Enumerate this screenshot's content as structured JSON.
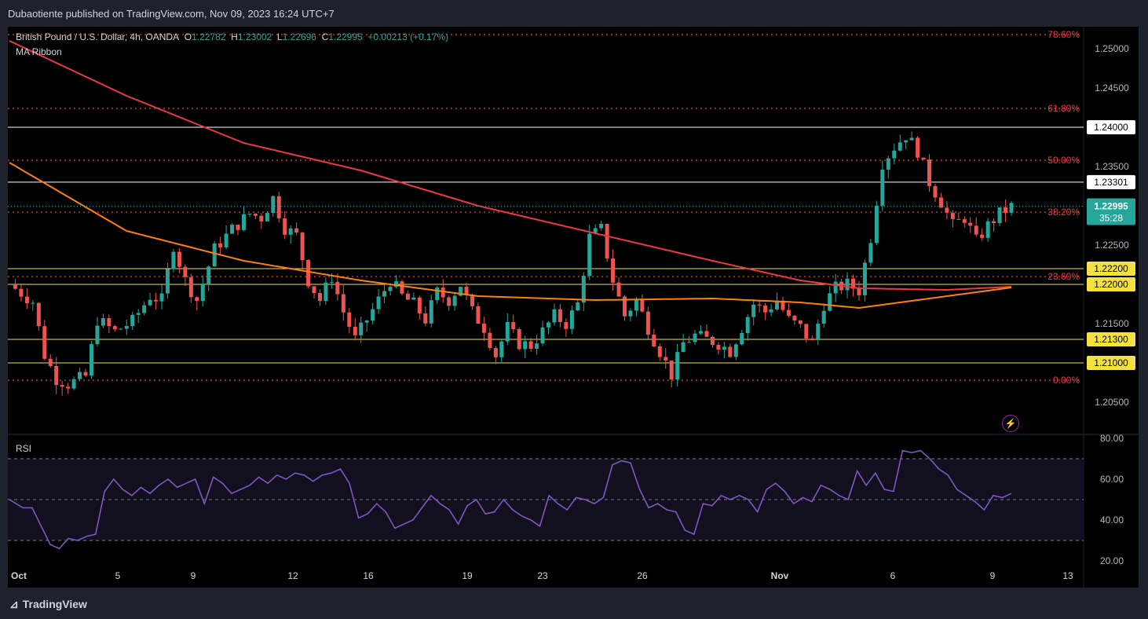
{
  "header": {
    "published": "Dubaotiente published on TradingView.com, Nov 09, 2023 16:24 UTC+7"
  },
  "legend": {
    "symbol": "British Pound / U.S. Dollar, 4h, OANDA",
    "o_label": "O",
    "o": "1.22782",
    "h_label": "H",
    "h": "1.23002",
    "l_label": "L",
    "l": "1.22696",
    "c_label": "C",
    "c": "1.22995",
    "change": "+0.00213 (+0.17%)",
    "indicator": "MA Ribbon"
  },
  "rsi_label": "RSI",
  "footer": {
    "brand": "TradingView"
  },
  "countdown": "35:28",
  "colors": {
    "up": "#26a69a",
    "down": "#ef5350",
    "ma_slow": "#f23645",
    "ma_fast": "#ff7f0e",
    "rsi": "#7e57c2",
    "fib": "#f23645",
    "level_white": "#ffffff",
    "level_yellow": "#f5e142"
  },
  "chart_data": {
    "type": "candlestick",
    "symbol": "GBPUSD",
    "timeframe": "4h",
    "y_ticks": [
      "1.25000",
      "1.24500",
      "1.23500",
      "1.22500",
      "1.21500",
      "1.20500"
    ],
    "ylim": [
      1.2025,
      1.2535
    ],
    "x_ticks": [
      "Oct",
      "5",
      "9",
      "12",
      "16",
      "19",
      "23",
      "26",
      "Nov",
      "6",
      "9",
      "13"
    ],
    "fib_levels": [
      {
        "label": "78.60%",
        "value": 1.2518
      },
      {
        "label": "61.80%",
        "value": 1.2424
      },
      {
        "label": "50.00%",
        "value": 1.2358
      },
      {
        "label": "38.20%",
        "value": 1.2292
      },
      {
        "label": "23.60%",
        "value": 1.221
      },
      {
        "label": "0.00%",
        "value": 1.2078
      }
    ],
    "horizontal_levels": [
      {
        "label": "1.24000",
        "value": 1.24,
        "style": "white"
      },
      {
        "label": "1.23301",
        "value": 1.23301,
        "style": "white"
      },
      {
        "label": "1.22200",
        "value": 1.222,
        "style": "yellow"
      },
      {
        "label": "1.22000",
        "value": 1.22,
        "style": "yellow"
      },
      {
        "label": "1.21300",
        "value": 1.213,
        "style": "yellow"
      },
      {
        "label": "1.21000",
        "value": 1.21,
        "style": "yellow"
      }
    ],
    "last_price": {
      "label": "1.22995",
      "value": 1.22995
    },
    "close_path": [
      [
        0,
        1.22
      ],
      [
        4,
        1.2178
      ],
      [
        6,
        1.211
      ],
      [
        8,
        1.208
      ],
      [
        10,
        1.2073
      ],
      [
        13,
        1.2083
      ],
      [
        15,
        1.2155
      ],
      [
        18,
        1.214
      ],
      [
        21,
        1.2153
      ],
      [
        24,
        1.2185
      ],
      [
        26,
        1.218
      ],
      [
        28,
        1.225
      ],
      [
        30,
        1.2205
      ],
      [
        32,
        1.218
      ],
      [
        35,
        1.2245
      ],
      [
        38,
        1.227
      ],
      [
        41,
        1.229
      ],
      [
        43,
        1.2285
      ],
      [
        45,
        1.231
      ],
      [
        47,
        1.2272
      ],
      [
        49,
        1.2262
      ],
      [
        51,
        1.2205
      ],
      [
        53,
        1.218
      ],
      [
        55,
        1.221
      ],
      [
        57,
        1.2165
      ],
      [
        59,
        1.213
      ],
      [
        61,
        1.2155
      ],
      [
        63,
        1.218
      ],
      [
        65,
        1.2205
      ],
      [
        67,
        1.2185
      ],
      [
        69,
        1.2175
      ],
      [
        71,
        1.2155
      ],
      [
        73,
        1.219
      ],
      [
        75,
        1.218
      ],
      [
        77,
        1.22
      ],
      [
        79,
        1.2165
      ],
      [
        81,
        1.2145
      ],
      [
        83,
        1.211
      ],
      [
        85,
        1.2145
      ],
      [
        87,
        1.2125
      ],
      [
        89,
        1.2122
      ],
      [
        91,
        1.214
      ],
      [
        93,
        1.216
      ],
      [
        95,
        1.215
      ],
      [
        97,
        1.2175
      ],
      [
        99,
        1.226
      ],
      [
        101,
        1.227
      ],
      [
        103,
        1.2205
      ],
      [
        105,
        1.216
      ],
      [
        107,
        1.218
      ],
      [
        109,
        1.2145
      ],
      [
        111,
        1.2115
      ],
      [
        113,
        1.2085
      ],
      [
        115,
        1.2125
      ],
      [
        117,
        1.2135
      ],
      [
        119,
        1.213
      ],
      [
        121,
        1.2125
      ],
      [
        123,
        1.2115
      ],
      [
        125,
        1.2145
      ],
      [
        127,
        1.2175
      ],
      [
        129,
        1.2165
      ],
      [
        131,
        1.218
      ],
      [
        133,
        1.2155
      ],
      [
        135,
        1.2145
      ],
      [
        137,
        1.2125
      ],
      [
        139,
        1.2175
      ],
      [
        141,
        1.2195
      ],
      [
        143,
        1.22
      ],
      [
        145,
        1.2192
      ],
      [
        147,
        1.226
      ],
      [
        149,
        1.2355
      ],
      [
        151,
        1.2375
      ],
      [
        153,
        1.239
      ],
      [
        155,
        1.237
      ],
      [
        157,
        1.233
      ],
      [
        159,
        1.2305
      ],
      [
        161,
        1.2275
      ],
      [
        163,
        1.2285
      ],
      [
        165,
        1.2255
      ],
      [
        167,
        1.2275
      ],
      [
        169,
        1.229
      ],
      [
        171,
        1.2299
      ]
    ],
    "ma_slow": [
      [
        0,
        1.251
      ],
      [
        20,
        1.244
      ],
      [
        40,
        1.238
      ],
      [
        60,
        1.2345
      ],
      [
        80,
        1.23
      ],
      [
        100,
        1.2265
      ],
      [
        120,
        1.223
      ],
      [
        135,
        1.2205
      ],
      [
        145,
        1.2195
      ],
      [
        160,
        1.2193
      ],
      [
        171,
        1.2197
      ]
    ],
    "ma_fast": [
      [
        0,
        1.2355
      ],
      [
        20,
        1.2268
      ],
      [
        40,
        1.223
      ],
      [
        60,
        1.2205
      ],
      [
        80,
        1.2185
      ],
      [
        100,
        1.218
      ],
      [
        120,
        1.2182
      ],
      [
        135,
        1.2177
      ],
      [
        145,
        1.217
      ],
      [
        155,
        1.218
      ],
      [
        165,
        1.219
      ],
      [
        171,
        1.2196
      ]
    ],
    "rsi": {
      "levels": [
        80,
        70,
        60,
        50,
        40,
        30,
        20
      ],
      "labels": [
        "80.00",
        "60.00",
        "40.00",
        "20.00"
      ],
      "ylim": [
        20,
        80
      ],
      "values": [
        [
          0,
          50
        ],
        [
          3,
          46
        ],
        [
          5,
          46
        ],
        [
          7,
          37
        ],
        [
          9,
          28
        ],
        [
          11,
          26
        ],
        [
          13,
          31
        ],
        [
          15,
          30
        ],
        [
          17,
          32
        ],
        [
          19,
          33
        ],
        [
          21,
          54
        ],
        [
          23,
          60
        ],
        [
          25,
          55
        ],
        [
          27,
          52
        ],
        [
          29,
          56
        ],
        [
          31,
          53
        ],
        [
          33,
          57
        ],
        [
          35,
          60
        ],
        [
          37,
          56
        ],
        [
          39,
          58
        ],
        [
          41,
          60
        ],
        [
          43,
          48
        ],
        [
          45,
          61
        ],
        [
          47,
          58
        ],
        [
          49,
          53
        ],
        [
          51,
          55
        ],
        [
          53,
          57
        ],
        [
          55,
          61
        ],
        [
          57,
          58
        ],
        [
          59,
          62
        ],
        [
          61,
          60
        ],
        [
          63,
          63
        ],
        [
          65,
          62
        ],
        [
          67,
          59
        ],
        [
          69,
          62
        ],
        [
          71,
          63
        ],
        [
          73,
          65
        ],
        [
          75,
          58
        ],
        [
          77,
          41
        ],
        [
          79,
          43
        ],
        [
          81,
          48
        ],
        [
          83,
          44
        ],
        [
          85,
          36
        ],
        [
          87,
          38
        ],
        [
          89,
          40
        ],
        [
          91,
          46
        ],
        [
          93,
          52
        ],
        [
          95,
          48
        ],
        [
          97,
          45
        ],
        [
          99,
          38
        ],
        [
          101,
          47
        ],
        [
          103,
          50
        ],
        [
          105,
          43
        ],
        [
          107,
          44
        ],
        [
          109,
          50
        ],
        [
          111,
          45
        ],
        [
          113,
          42
        ],
        [
          115,
          40
        ],
        [
          117,
          37
        ],
        [
          119,
          52
        ],
        [
          121,
          48
        ],
        [
          123,
          45
        ],
        [
          125,
          51
        ],
        [
          127,
          50
        ],
        [
          129,
          48
        ],
        [
          131,
          51
        ],
        [
          133,
          67
        ],
        [
          135,
          69
        ],
        [
          137,
          68
        ],
        [
          139,
          55
        ],
        [
          141,
          46
        ],
        [
          143,
          48
        ],
        [
          145,
          45
        ],
        [
          147,
          44
        ],
        [
          149,
          35
        ],
        [
          151,
          33
        ],
        [
          153,
          48
        ],
        [
          155,
          47
        ],
        [
          157,
          52
        ],
        [
          159,
          50
        ],
        [
          161,
          52
        ],
        [
          163,
          50
        ],
        [
          165,
          44
        ],
        [
          167,
          55
        ],
        [
          169,
          58
        ],
        [
          171,
          54
        ],
        [
          173,
          48
        ],
        [
          175,
          51
        ],
        [
          177,
          49
        ],
        [
          179,
          57
        ],
        [
          181,
          55
        ],
        [
          183,
          52
        ],
        [
          185,
          50
        ],
        [
          187,
          64
        ],
        [
          189,
          57
        ],
        [
          191,
          63
        ],
        [
          193,
          55
        ],
        [
          195,
          54
        ],
        [
          197,
          74
        ],
        [
          199,
          73
        ],
        [
          201,
          74
        ],
        [
          203,
          70
        ],
        [
          205,
          65
        ],
        [
          207,
          62
        ],
        [
          209,
          55
        ],
        [
          211,
          52
        ],
        [
          213,
          49
        ],
        [
          215,
          45
        ],
        [
          217,
          52
        ],
        [
          219,
          51
        ],
        [
          221,
          53
        ]
      ]
    }
  }
}
